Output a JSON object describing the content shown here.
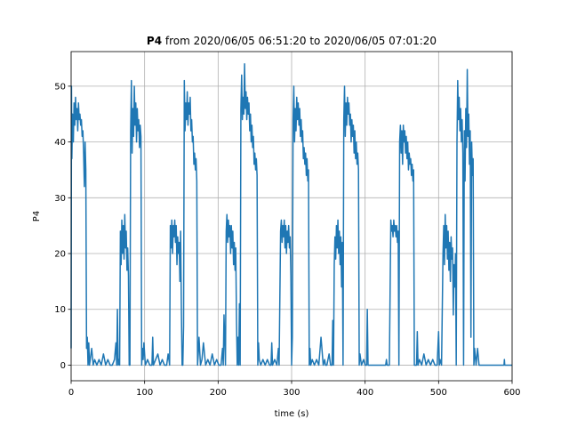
{
  "chart_data": {
    "type": "line",
    "title_bold": "P4",
    "title": "from 2020/06/05 06:51:20 to 2020/06/05 07:01:20",
    "xlabel": "time (s)",
    "ylabel": "P4",
    "color": "#1f77b4",
    "grid": true,
    "xlim": [
      0,
      600
    ],
    "ylim": [
      -2.8,
      56.2
    ],
    "xticks": [
      0,
      100,
      200,
      300,
      400,
      500,
      600
    ],
    "yticks": [
      0,
      10,
      20,
      30,
      40,
      50
    ],
    "x": [
      0,
      0.5,
      1,
      2,
      3,
      4,
      5,
      6,
      7,
      8,
      9,
      10,
      11,
      12,
      13,
      14,
      15,
      16,
      17,
      18,
      19,
      20,
      21,
      22,
      23,
      24,
      25,
      26,
      28,
      30,
      32,
      35,
      38,
      41,
      44,
      47,
      50,
      53,
      56,
      59,
      61,
      62,
      63,
      64,
      65,
      66,
      67,
      68,
      69,
      70,
      71,
      72,
      73,
      74,
      75,
      76,
      77,
      78,
      79,
      80,
      81,
      82,
      83,
      84,
      85,
      86,
      87,
      88,
      89,
      90,
      91,
      92,
      93,
      94,
      95,
      96,
      97,
      98,
      99,
      101,
      104,
      107,
      110,
      111,
      112,
      115,
      118,
      121,
      124,
      127,
      130,
      132,
      134,
      135,
      136,
      137,
      138,
      139,
      140,
      141,
      142,
      143,
      144,
      145,
      146,
      147,
      148,
      149,
      150,
      151,
      152,
      153,
      154,
      155,
      156,
      157,
      158,
      159,
      160,
      161,
      162,
      163,
      164,
      165,
      166,
      167,
      168,
      169,
      170,
      171,
      172,
      173,
      174,
      176,
      178,
      180,
      183,
      186,
      189,
      192,
      195,
      198,
      201,
      204,
      206,
      207,
      208,
      210,
      211,
      212,
      213,
      214,
      215,
      216,
      217,
      218,
      219,
      220,
      221,
      222,
      223,
      224,
      225,
      226,
      227,
      228,
      229,
      230,
      231,
      232,
      233,
      234,
      235,
      236,
      237,
      238,
      239,
      240,
      241,
      242,
      243,
      244,
      245,
      246,
      247,
      248,
      249,
      250,
      251,
      252,
      253,
      254,
      255,
      256,
      258,
      261,
      264,
      267,
      270,
      272,
      273,
      274,
      277,
      280,
      282,
      283,
      285,
      286,
      287,
      288,
      289,
      290,
      291,
      292,
      293,
      294,
      295,
      296,
      297,
      298,
      299,
      300,
      301,
      302,
      303,
      304,
      305,
      306,
      307,
      308,
      309,
      310,
      311,
      312,
      313,
      314,
      315,
      316,
      317,
      318,
      319,
      320,
      321,
      322,
      323,
      324,
      325,
      326,
      328,
      331,
      334,
      337,
      340,
      343,
      345,
      346,
      348,
      351,
      353,
      355,
      356,
      357,
      358,
      359,
      360,
      361,
      362,
      363,
      364,
      365,
      366,
      367,
      368,
      369,
      370,
      371,
      372,
      373,
      374,
      375,
      376,
      377,
      378,
      379,
      380,
      381,
      382,
      383,
      384,
      385,
      386,
      387,
      388,
      389,
      390,
      391,
      392,
      393,
      395,
      398,
      400,
      402,
      403,
      404,
      406,
      410,
      415,
      420,
      425,
      428,
      429,
      430,
      433,
      434,
      435,
      436,
      437,
      438,
      439,
      440,
      441,
      442,
      443,
      444,
      445,
      446,
      447,
      448,
      449,
      450,
      451,
      452,
      453,
      454,
      455,
      456,
      457,
      458,
      459,
      460,
      461,
      462,
      463,
      464,
      465,
      466,
      467,
      468,
      470,
      471,
      472,
      474,
      477,
      480,
      483,
      486,
      489,
      492,
      495,
      498,
      500,
      501,
      502,
      504,
      506,
      507,
      508,
      509,
      510,
      511,
      512,
      513,
      514,
      515,
      516,
      517,
      518,
      519,
      520,
      521,
      522,
      523,
      524,
      525,
      526,
      527,
      528,
      529,
      530,
      531,
      532,
      533,
      534,
      535,
      536,
      537,
      538,
      539,
      540,
      541,
      542,
      543,
      544,
      545,
      546,
      547,
      548,
      549,
      551,
      553,
      555,
      560,
      570,
      580,
      589,
      589.5,
      590,
      600
    ],
    "values": [
      3,
      50,
      37,
      45,
      40,
      47,
      43,
      48,
      44,
      46,
      42,
      47,
      44,
      45,
      43,
      44,
      41,
      42,
      38,
      32,
      40,
      35,
      3,
      5,
      0,
      4,
      0,
      1,
      3,
      0,
      1,
      0,
      1,
      0,
      2,
      0,
      1,
      0,
      0,
      1,
      4,
      0,
      10,
      0,
      1,
      0,
      24,
      18,
      26,
      20,
      25,
      19,
      27,
      21,
      24,
      17,
      21,
      16,
      0,
      0,
      42,
      51,
      38,
      46,
      41,
      50,
      43,
      47,
      40,
      46,
      42,
      44,
      39,
      43,
      41,
      0,
      3,
      1,
      4,
      0,
      1,
      0,
      0,
      5,
      0,
      1,
      2,
      0,
      1,
      0,
      0,
      2,
      0,
      25,
      21,
      26,
      20,
      25,
      23,
      26,
      22,
      25,
      18,
      23,
      20,
      22,
      15,
      24,
      10,
      0,
      0,
      7,
      51,
      42,
      47,
      44,
      49,
      43,
      47,
      45,
      48,
      42,
      44,
      40,
      41,
      36,
      38,
      35,
      37,
      33,
      0,
      2,
      5,
      0,
      1,
      4,
      0,
      1,
      0,
      2,
      0,
      1,
      0,
      0,
      3,
      0,
      9,
      0,
      24,
      27,
      22,
      26,
      23,
      25,
      20,
      25,
      21,
      24,
      18,
      22,
      17,
      21,
      8,
      0,
      5,
      0,
      11,
      0,
      46,
      52,
      44,
      48,
      45,
      54,
      46,
      49,
      44,
      48,
      45,
      47,
      42,
      45,
      40,
      43,
      39,
      41,
      36,
      38,
      35,
      37,
      34,
      0,
      4,
      1,
      0,
      1,
      0,
      1,
      0,
      0,
      4,
      0,
      1,
      0,
      3,
      0,
      24,
      26,
      22,
      25,
      23,
      26,
      21,
      25,
      20,
      24,
      22,
      25,
      21,
      23,
      16,
      0,
      5,
      44,
      50,
      40,
      46,
      42,
      48,
      44,
      47,
      43,
      46,
      41,
      44,
      40,
      42,
      37,
      39,
      36,
      38,
      34,
      37,
      33,
      35,
      0,
      3,
      0,
      1,
      0,
      1,
      0,
      5,
      0,
      1,
      0,
      0,
      2,
      0,
      0,
      8,
      0,
      18,
      23,
      19,
      25,
      21,
      26,
      20,
      24,
      18,
      23,
      14,
      22,
      0,
      44,
      50,
      41,
      47,
      43,
      48,
      45,
      47,
      43,
      45,
      40,
      44,
      41,
      43,
      38,
      42,
      37,
      40,
      36,
      38,
      35,
      0,
      2,
      0,
      1,
      0,
      0,
      10,
      0,
      0,
      0,
      0,
      0,
      0,
      0,
      1,
      0,
      0,
      13,
      26,
      24,
      25,
      23,
      26,
      24,
      25,
      23,
      25,
      22,
      24,
      0,
      40,
      43,
      38,
      42,
      36,
      43,
      40,
      42,
      38,
      41,
      37,
      40,
      35,
      38,
      36,
      37,
      34,
      36,
      33,
      35,
      0,
      0,
      0,
      6,
      0,
      1,
      0,
      2,
      0,
      1,
      0,
      1,
      0,
      0,
      6,
      0,
      1,
      0,
      20,
      25,
      18,
      27,
      21,
      25,
      19,
      24,
      17,
      22,
      15,
      23,
      19,
      21,
      9,
      18,
      14,
      20,
      0,
      40,
      51,
      44,
      48,
      42,
      46,
      40,
      44,
      38,
      0,
      42,
      33,
      46,
      39,
      53,
      41,
      45,
      36,
      42,
      5,
      40,
      34,
      37,
      0,
      3,
      0,
      3,
      0,
      0,
      0,
      0,
      0,
      1,
      0,
      0
    ]
  }
}
